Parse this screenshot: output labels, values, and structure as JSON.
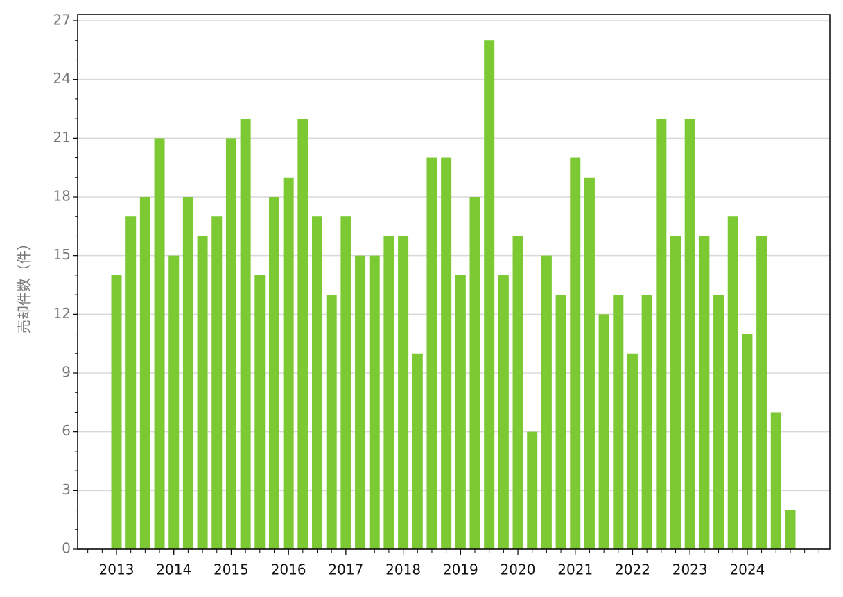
{
  "chart_data": {
    "type": "bar",
    "y_label": "売却件数（件）",
    "categories": [
      "2013",
      null,
      null,
      null,
      "2014",
      null,
      null,
      null,
      "2015",
      null,
      null,
      null,
      "2016",
      null,
      null,
      null,
      "2017",
      null,
      null,
      null,
      "2018",
      null,
      null,
      null,
      "2019",
      null,
      null,
      null,
      "2020",
      null,
      null,
      null,
      "2021",
      null,
      null,
      null,
      "2022",
      null,
      null,
      null,
      "2023",
      null,
      null,
      null,
      "2024",
      null,
      null,
      null
    ],
    "values": [
      14,
      17,
      18,
      21,
      15,
      18,
      16,
      17,
      21,
      22,
      14,
      18,
      19,
      22,
      17,
      13,
      17,
      15,
      15,
      16,
      16,
      10,
      20,
      20,
      14,
      18,
      26,
      14,
      16,
      6,
      15,
      13,
      20,
      19,
      12,
      13,
      10,
      13,
      22,
      16,
      22,
      16,
      13,
      17,
      11,
      16,
      7,
      2
    ],
    "color": "#7cc934",
    "ylim": [
      0,
      27
    ],
    "yticks": [
      0,
      3,
      6,
      9,
      12,
      15,
      18,
      21,
      24,
      27
    ],
    "grid": true
  }
}
